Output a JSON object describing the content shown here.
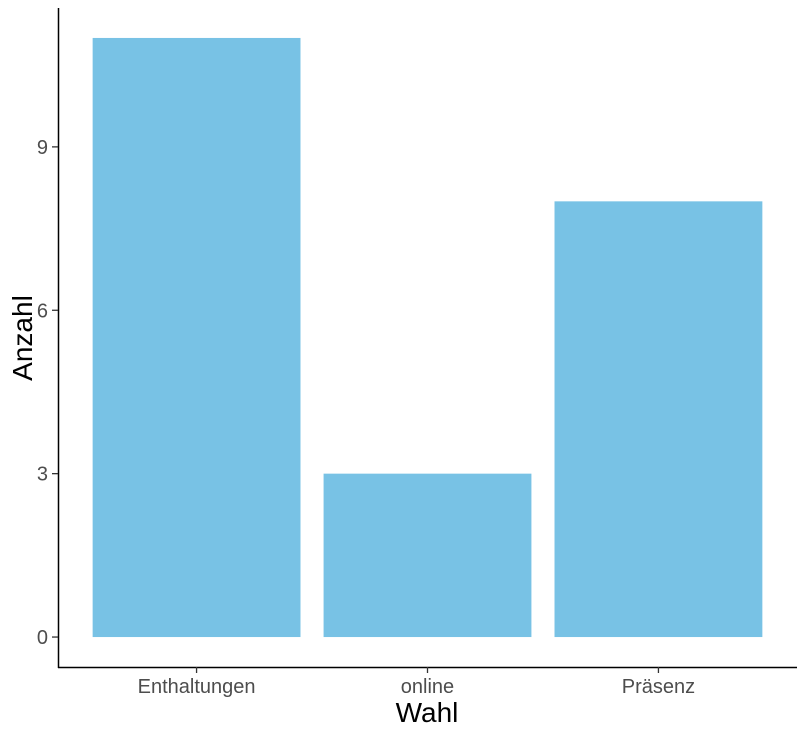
{
  "chart_data": {
    "type": "bar",
    "categories": [
      "Enthaltungen",
      "online",
      "Präsenz"
    ],
    "values": [
      11,
      3,
      8
    ],
    "xlabel": "Wahl",
    "ylabel": "Anzahl",
    "yticks": [
      0,
      3,
      6,
      9
    ],
    "ylim": [
      -0.55,
      11.55
    ],
    "grid": false,
    "bar_color": "#78C2E5",
    "axis_color": "#000000",
    "tick_label_color": "#4d4d4d"
  }
}
